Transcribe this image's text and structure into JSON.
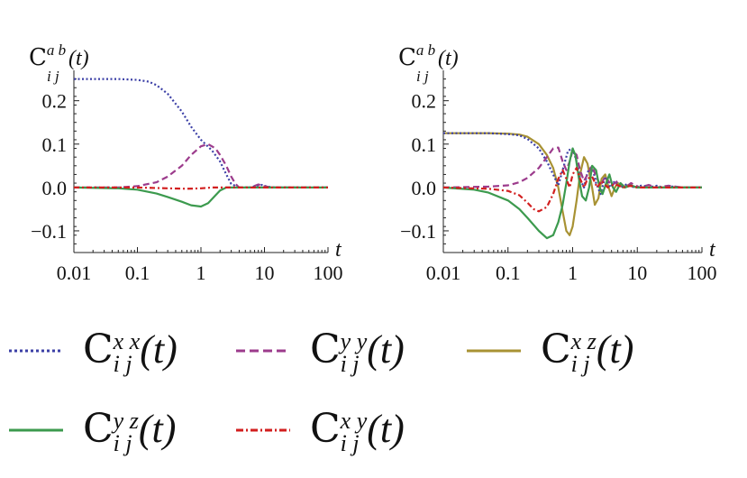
{
  "chart_data": [
    {
      "type": "line",
      "ylabel": "C_{i j}^{a b}(t)",
      "ylabel_main": "C",
      "ylabel_sup": "a b",
      "ylabel_sub": "i  j",
      "ylabel_arg": "(t)",
      "xlabel": "t",
      "x_scale": "log",
      "xlim": [
        0.01,
        100
      ],
      "ylim": [
        -0.15,
        0.27
      ],
      "xticks": [
        "0.01",
        "0.1",
        "1",
        "10",
        "100"
      ],
      "xtick_values": [
        0.01,
        0.1,
        1,
        10,
        100
      ],
      "yticks": [
        "0.2",
        "0.1",
        "0.0",
        "−0.1"
      ],
      "ytick_values": [
        0.2,
        0.1,
        0.0,
        -0.1
      ],
      "series": [
        {
          "key": "xx",
          "color": "#3b3fa6",
          "dash": "dotted",
          "points": [
            [
              0.01,
              0.25
            ],
            [
              0.05,
              0.25
            ],
            [
              0.1,
              0.248
            ],
            [
              0.15,
              0.244
            ],
            [
              0.2,
              0.236
            ],
            [
              0.3,
              0.216
            ],
            [
              0.5,
              0.175
            ],
            [
              0.7,
              0.14
            ],
            [
              1,
              0.11
            ],
            [
              1.5,
              0.085
            ],
            [
              2,
              0.06
            ],
            [
              2.5,
              0.03
            ],
            [
              3,
              0.008
            ],
            [
              4,
              0.0
            ],
            [
              5,
              0.0
            ],
            [
              6,
              0.0
            ],
            [
              7,
              0.003
            ],
            [
              9,
              0.006
            ],
            [
              11,
              0.002
            ],
            [
              15,
              0.0
            ],
            [
              100,
              0.0
            ]
          ]
        },
        {
          "key": "yy",
          "color": "#9c3b8c",
          "dash": "dashed",
          "points": [
            [
              0.01,
              0.0
            ],
            [
              0.05,
              0.0
            ],
            [
              0.1,
              0.003
            ],
            [
              0.2,
              0.012
            ],
            [
              0.3,
              0.025
            ],
            [
              0.5,
              0.05
            ],
            [
              0.7,
              0.075
            ],
            [
              1,
              0.095
            ],
            [
              1.3,
              0.1
            ],
            [
              1.7,
              0.09
            ],
            [
              2,
              0.075
            ],
            [
              2.5,
              0.05
            ],
            [
              3,
              0.025
            ],
            [
              3.5,
              0.008
            ],
            [
              4,
              0.0
            ],
            [
              6,
              0.0
            ],
            [
              8,
              0.007
            ],
            [
              10,
              0.003
            ],
            [
              13,
              0.0
            ],
            [
              100,
              0.0
            ]
          ]
        },
        {
          "key": "yz",
          "color": "#3c9a4e",
          "dash": "solid",
          "points": [
            [
              0.01,
              0.0
            ],
            [
              0.05,
              -0.002
            ],
            [
              0.1,
              -0.005
            ],
            [
              0.2,
              -0.014
            ],
            [
              0.3,
              -0.022
            ],
            [
              0.5,
              -0.033
            ],
            [
              0.7,
              -0.041
            ],
            [
              1,
              -0.044
            ],
            [
              1.3,
              -0.036
            ],
            [
              1.7,
              -0.018
            ],
            [
              2,
              -0.007
            ],
            [
              2.5,
              0.0
            ],
            [
              100,
              0.0
            ]
          ]
        },
        {
          "key": "xy",
          "color": "#d21f1f",
          "dash": "dashdot",
          "points": [
            [
              0.01,
              0.0
            ],
            [
              0.1,
              0.0
            ],
            [
              0.3,
              -0.002
            ],
            [
              0.6,
              -0.003
            ],
            [
              1,
              -0.002
            ],
            [
              1.5,
              0.0
            ],
            [
              100,
              0.0
            ]
          ]
        }
      ]
    },
    {
      "type": "line",
      "ylabel": "C_{i j}^{a b}(t)",
      "ylabel_main": "C",
      "ylabel_sup": "a b",
      "ylabel_sub": "i  j",
      "ylabel_arg": "(t)",
      "xlabel": "t",
      "x_scale": "log",
      "xlim": [
        0.01,
        100
      ],
      "ylim": [
        -0.15,
        0.27
      ],
      "xticks": [
        "0.01",
        "0.1",
        "1",
        "10",
        "100"
      ],
      "xtick_values": [
        0.01,
        0.1,
        1,
        10,
        100
      ],
      "yticks": [
        "0.2",
        "0.1",
        "0.0",
        "−0.1"
      ],
      "ytick_values": [
        0.2,
        0.1,
        0.0,
        -0.1
      ],
      "series": [
        {
          "key": "xz",
          "color": "#a89233",
          "dash": "solid",
          "points": [
            [
              0.01,
              0.125
            ],
            [
              0.05,
              0.125
            ],
            [
              0.1,
              0.124
            ],
            [
              0.15,
              0.122
            ],
            [
              0.2,
              0.117
            ],
            [
              0.3,
              0.1
            ],
            [
              0.4,
              0.075
            ],
            [
              0.5,
              0.045
            ],
            [
              0.6,
              0.0
            ],
            [
              0.7,
              -0.055
            ],
            [
              0.8,
              -0.1
            ],
            [
              0.9,
              -0.11
            ],
            [
              1.0,
              -0.09
            ],
            [
              1.15,
              -0.03
            ],
            [
              1.3,
              0.03
            ],
            [
              1.5,
              0.07
            ],
            [
              1.7,
              0.055
            ],
            [
              2.0,
              0.0
            ],
            [
              2.2,
              -0.04
            ],
            [
              2.5,
              -0.025
            ],
            [
              2.8,
              0.02
            ],
            [
              3.2,
              0.03
            ],
            [
              3.6,
              0.0
            ],
            [
              4.0,
              -0.02
            ],
            [
              4.5,
              0.0
            ],
            [
              5,
              0.01
            ],
            [
              6,
              0.0
            ],
            [
              7,
              0.005
            ],
            [
              10,
              0.0
            ],
            [
              100,
              0.0
            ]
          ]
        },
        {
          "key": "xx",
          "color": "#3b3fa6",
          "dash": "dotted",
          "points": [
            [
              0.01,
              0.125
            ],
            [
              0.05,
              0.125
            ],
            [
              0.1,
              0.123
            ],
            [
              0.15,
              0.12
            ],
            [
              0.2,
              0.112
            ],
            [
              0.3,
              0.09
            ],
            [
              0.4,
              0.06
            ],
            [
              0.5,
              0.03
            ],
            [
              0.6,
              0.005
            ],
            [
              0.7,
              0.04
            ],
            [
              0.85,
              0.085
            ],
            [
              1.0,
              0.09
            ],
            [
              1.15,
              0.06
            ],
            [
              1.3,
              0.02
            ],
            [
              1.5,
              0.0
            ],
            [
              1.7,
              0.035
            ],
            [
              2.0,
              0.05
            ],
            [
              2.3,
              0.01
            ],
            [
              2.7,
              -0.015
            ],
            [
              3.2,
              0.025
            ],
            [
              3.8,
              0.0
            ],
            [
              4.5,
              0.015
            ],
            [
              5.5,
              0.0
            ],
            [
              7,
              0.008
            ],
            [
              9,
              0.0
            ],
            [
              12,
              0.005
            ],
            [
              15,
              0.0
            ],
            [
              20,
              0.004
            ],
            [
              25,
              0.0
            ],
            [
              35,
              0.002
            ],
            [
              50,
              0.0
            ],
            [
              100,
              0.0
            ]
          ]
        },
        {
          "key": "yy",
          "color": "#9c3b8c",
          "dash": "dashed",
          "points": [
            [
              0.01,
              0.0
            ],
            [
              0.05,
              0.002
            ],
            [
              0.1,
              0.005
            ],
            [
              0.15,
              0.012
            ],
            [
              0.2,
              0.022
            ],
            [
              0.3,
              0.045
            ],
            [
              0.4,
              0.07
            ],
            [
              0.5,
              0.09
            ],
            [
              0.6,
              0.092
            ],
            [
              0.7,
              0.06
            ],
            [
              0.8,
              0.04
            ],
            [
              0.9,
              0.06
            ],
            [
              1.0,
              0.085
            ],
            [
              1.15,
              0.075
            ],
            [
              1.3,
              0.04
            ],
            [
              1.5,
              0.015
            ],
            [
              1.7,
              0.03
            ],
            [
              2.0,
              0.05
            ],
            [
              2.3,
              0.025
            ],
            [
              2.7,
              0.005
            ],
            [
              3.2,
              0.025
            ],
            [
              4,
              0.005
            ],
            [
              5,
              0.015
            ],
            [
              6.5,
              0.0
            ],
            [
              8,
              0.01
            ],
            [
              11,
              0.0
            ],
            [
              15,
              0.006
            ],
            [
              20,
              0.0
            ],
            [
              30,
              0.004
            ],
            [
              50,
              0.0
            ],
            [
              100,
              0.0
            ]
          ]
        },
        {
          "key": "yz",
          "color": "#3c9a4e",
          "dash": "solid",
          "points": [
            [
              0.01,
              0.0
            ],
            [
              0.03,
              -0.005
            ],
            [
              0.05,
              -0.012
            ],
            [
              0.1,
              -0.03
            ],
            [
              0.15,
              -0.05
            ],
            [
              0.2,
              -0.07
            ],
            [
              0.3,
              -0.1
            ],
            [
              0.4,
              -0.117
            ],
            [
              0.5,
              -0.11
            ],
            [
              0.6,
              -0.08
            ],
            [
              0.7,
              -0.04
            ],
            [
              0.8,
              0.01
            ],
            [
              0.9,
              0.06
            ],
            [
              1.0,
              0.09
            ],
            [
              1.1,
              0.075
            ],
            [
              1.25,
              0.02
            ],
            [
              1.4,
              -0.02
            ],
            [
              1.6,
              -0.03
            ],
            [
              1.8,
              0.0
            ],
            [
              2.0,
              0.05
            ],
            [
              2.3,
              0.04
            ],
            [
              2.6,
              0.0
            ],
            [
              2.9,
              -0.015
            ],
            [
              3.3,
              0.01
            ],
            [
              3.7,
              0.03
            ],
            [
              4.2,
              0.0
            ],
            [
              4.7,
              -0.01
            ],
            [
              5.5,
              0.01
            ],
            [
              6.5,
              0.0
            ],
            [
              8,
              0.005
            ],
            [
              10,
              0.0
            ],
            [
              100,
              0.0
            ]
          ]
        },
        {
          "key": "xy",
          "color": "#d21f1f",
          "dash": "dashdot",
          "points": [
            [
              0.01,
              0.0
            ],
            [
              0.05,
              -0.003
            ],
            [
              0.1,
              -0.008
            ],
            [
              0.15,
              -0.018
            ],
            [
              0.2,
              -0.035
            ],
            [
              0.25,
              -0.05
            ],
            [
              0.3,
              -0.055
            ],
            [
              0.4,
              -0.045
            ],
            [
              0.5,
              -0.015
            ],
            [
              0.6,
              0.02
            ],
            [
              0.7,
              0.04
            ],
            [
              0.8,
              0.02
            ],
            [
              0.9,
              0.0
            ],
            [
              1.0,
              0.03
            ],
            [
              1.15,
              0.045
            ],
            [
              1.3,
              0.02
            ],
            [
              1.5,
              0.0
            ],
            [
              1.7,
              0.02
            ],
            [
              2.0,
              0.025
            ],
            [
              2.4,
              0.0
            ],
            [
              2.8,
              0.015
            ],
            [
              3.5,
              0.0
            ],
            [
              4.5,
              0.008
            ],
            [
              6,
              0.0
            ],
            [
              8,
              0.004
            ],
            [
              10,
              0.0
            ],
            [
              100,
              0.0
            ]
          ]
        }
      ]
    }
  ],
  "legend": {
    "items": [
      {
        "key": "xx",
        "main": "C",
        "sup": "x x",
        "sub": "i  j",
        "arg": "(t)",
        "color": "#3b3fa6",
        "dash": "dotted"
      },
      {
        "key": "yy",
        "main": "C",
        "sup": "y y",
        "sub": "i  j",
        "arg": "(t)",
        "color": "#9c3b8c",
        "dash": "dashed"
      },
      {
        "key": "xz",
        "main": "C",
        "sup": "x z",
        "sub": "i  j",
        "arg": "(t)",
        "color": "#a89233",
        "dash": "solid"
      },
      {
        "key": "yz",
        "main": "C",
        "sup": "y z",
        "sub": "i  j",
        "arg": "(t)",
        "color": "#3c9a4e",
        "dash": "solid"
      },
      {
        "key": "xy",
        "main": "C",
        "sup": "x y",
        "sub": "i  j",
        "arg": "(t)",
        "color": "#d21f1f",
        "dash": "dashdot"
      }
    ]
  }
}
